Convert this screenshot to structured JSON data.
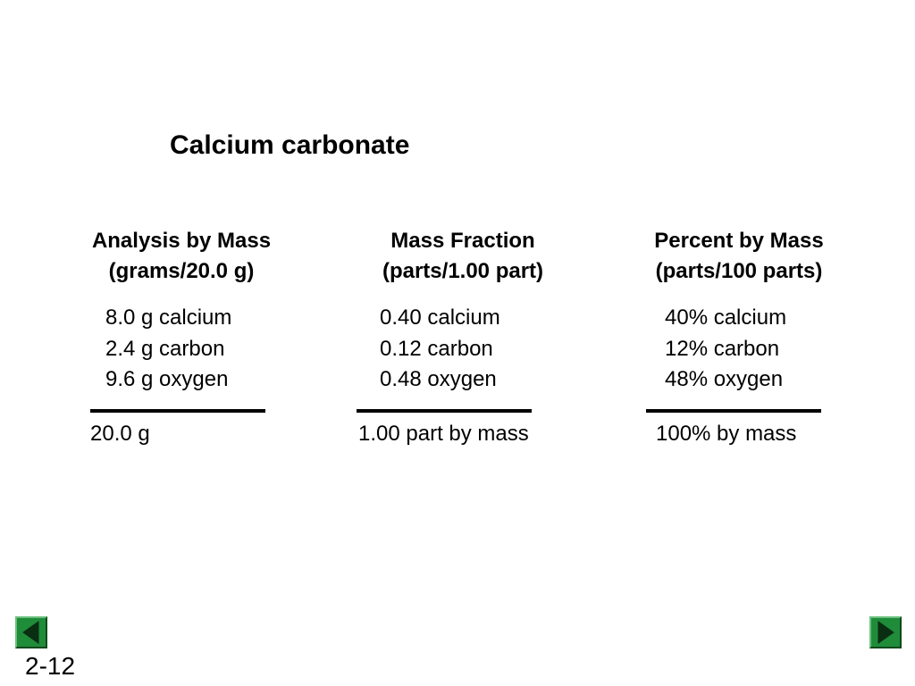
{
  "title": "Calcium carbonate",
  "columns": [
    {
      "heading_line1": "Analysis by Mass",
      "heading_line2": "(grams/20.0 g)",
      "items": [
        "8.0 g calcium",
        "2.4 g carbon",
        "9.6 g oxygen"
      ],
      "total": "20.0 g"
    },
    {
      "heading_line1": "Mass Fraction",
      "heading_line2": "(parts/1.00 part)",
      "items": [
        "0.40 calcium",
        "0.12 carbon",
        "0.48 oxygen"
      ],
      "total": "1.00 part by mass"
    },
    {
      "heading_line1": "Percent by Mass",
      "heading_line2": "(parts/100 parts)",
      "items": [
        "40% calcium",
        "12% carbon",
        "48% oxygen"
      ],
      "total": "100% by mass"
    }
  ],
  "navigation": {
    "prev_icon": "triangle-left-icon",
    "next_icon": "triangle-right-icon",
    "button_color": "#1f8c3a"
  },
  "slide_number": "2-12"
}
